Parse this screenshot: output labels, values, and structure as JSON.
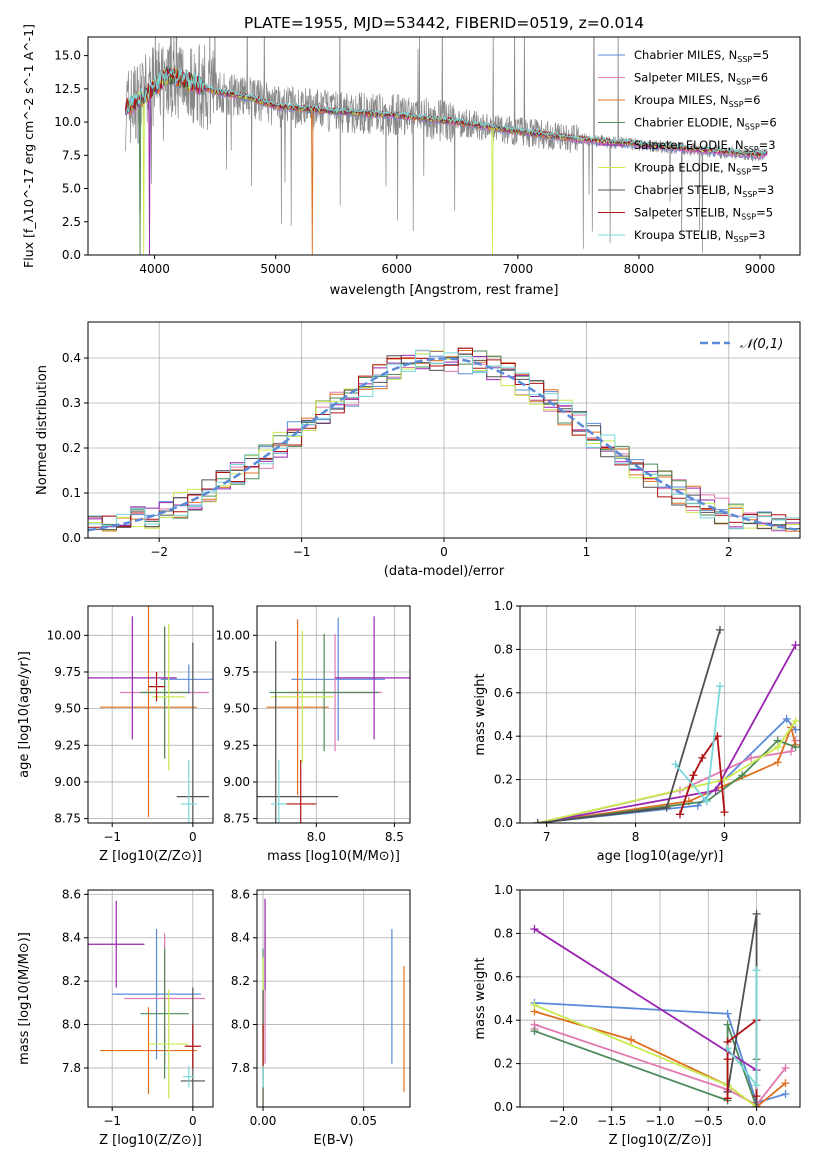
{
  "colors": {
    "c0": "#5b8bd8",
    "c1": "#e07ab0",
    "c2": "#e07020",
    "c3": "#4e8a5a",
    "c4": "#9a25b0",
    "c5": "#c8ec50",
    "c6": "#505050",
    "c7": "#b01010",
    "c8": "#7ad8d8",
    "gray": "#888888",
    "grid": "#b0b0b0"
  },
  "chart_data": [
    {
      "id": "spectrum",
      "type": "line",
      "title": "PLATE=1955, MJD=53442, FIBERID=0519, z=0.014",
      "xlabel": "wavelength [Angstrom, rest frame]",
      "ylabel": "Flux [f_λ10^-17 erg cm^-2 s^-1 A^-1]",
      "xlim": [
        3450,
        9330
      ],
      "ylim": [
        0,
        16.4
      ],
      "xticks": [
        4000,
        5000,
        6000,
        7000,
        8000,
        9000
      ],
      "yticks": [
        0.0,
        2.5,
        5.0,
        7.5,
        10.0,
        12.5,
        15.0
      ],
      "grid": false,
      "legend_position": "top-right",
      "legend": [
        "Chabrier MILES, N_SSP=5",
        "Salpeter MILES, N_SSP=6",
        "Kroupa MILES, N_SSP=6",
        "Chabrier ELODIE, N_SSP=6",
        "Salpeter ELODIE, N_SSP=3",
        "Kroupa ELODIE, N_SSP=5",
        "Chabrier STELIB, N_SSP=3",
        "Salpeter STELIB, N_SSP=5",
        "Kroupa STELIB, N_SSP=3"
      ],
      "continuum": [
        [
          3760,
          11.0
        ],
        [
          3900,
          11.8
        ],
        [
          4000,
          12.6
        ],
        [
          4100,
          13.5
        ],
        [
          4300,
          13.0
        ],
        [
          4500,
          12.3
        ],
        [
          4800,
          11.8
        ],
        [
          5000,
          11.2
        ],
        [
          5500,
          10.8
        ],
        [
          6000,
          10.5
        ],
        [
          6500,
          10.0
        ],
        [
          7000,
          9.3
        ],
        [
          7500,
          8.7
        ],
        [
          8000,
          8.3
        ],
        [
          8500,
          7.9
        ],
        [
          9000,
          7.5
        ],
        [
          9060,
          7.7
        ]
      ]
    },
    {
      "id": "residuals",
      "type": "line",
      "xlabel": "(data-model)/error",
      "ylabel": "Normed distribution",
      "xlim": [
        -2.5,
        2.5
      ],
      "ylim": [
        0,
        0.48
      ],
      "xticks": [
        -2,
        -1,
        0,
        1,
        2
      ],
      "yticks": [
        0.0,
        0.1,
        0.2,
        0.3,
        0.4
      ],
      "grid": true,
      "legend_position": "top-right",
      "legend": [
        "𝒩(0,1)"
      ],
      "reference_curve": "N(0,1) gaussian"
    },
    {
      "id": "z-vs-age",
      "type": "scatter",
      "xlabel": "Z [log10(Z/Z⊙)]",
      "ylabel": "age  [log10(age/yr)]",
      "xlim": [
        -1.3,
        0.25
      ],
      "ylim": [
        8.72,
        10.2
      ],
      "xticks": [
        -1,
        0
      ],
      "yticks": [
        8.75,
        9.0,
        9.25,
        9.5,
        9.75,
        10.0
      ],
      "grid": true,
      "points": [
        {
          "x": -0.05,
          "y": 9.7,
          "xerr": 0.35,
          "yerr": 0.1
        },
        {
          "x": -0.35,
          "y": 9.61,
          "xerr": 0.55,
          "yerr": 0.45
        },
        {
          "x": -0.55,
          "y": 9.51,
          "xerr": 0.6,
          "yerr": 0.75
        },
        {
          "x": -0.35,
          "y": 9.61,
          "xerr": 0.3,
          "yerr": 0.45
        },
        {
          "x": -0.75,
          "y": 9.71,
          "xerr": 0.55,
          "yerr": 0.42
        },
        {
          "x": -0.3,
          "y": 9.58,
          "xerr": 0.2,
          "yerr": 0.5
        },
        {
          "x": 0.0,
          "y": 8.9,
          "xerr": 0.2,
          "yerr": 1.05
        },
        {
          "x": -0.45,
          "y": 9.65,
          "xerr": 0.1,
          "yerr": 0.1
        },
        {
          "x": -0.05,
          "y": 8.85,
          "xerr": 0.1,
          "yerr": 0.3
        }
      ]
    },
    {
      "id": "mass-vs-age",
      "type": "scatter",
      "xlabel": "mass [log10(M/M⊙)]",
      "ylabel": "",
      "xlim": [
        7.62,
        8.6
      ],
      "ylim": [
        8.72,
        10.2
      ],
      "xticks": [
        8.0,
        8.5
      ],
      "yticks": [
        8.75,
        9.0,
        9.25,
        9.5,
        9.75,
        10.0
      ],
      "grid": true,
      "points": [
        {
          "x": 8.14,
          "y": 9.7,
          "xerr": 0.3,
          "yerr": 0.42
        },
        {
          "x": 8.12,
          "y": 9.61,
          "xerr": 0.3,
          "yerr": 0.4
        },
        {
          "x": 7.88,
          "y": 9.51,
          "xerr": 0.2,
          "yerr": 0.6
        },
        {
          "x": 8.05,
          "y": 9.61,
          "xerr": 0.35,
          "yerr": 0.4
        },
        {
          "x": 8.37,
          "y": 9.71,
          "xerr": 0.25,
          "yerr": 0.42
        },
        {
          "x": 7.91,
          "y": 9.58,
          "xerr": 0.2,
          "yerr": 0.45
        },
        {
          "x": 7.74,
          "y": 8.9,
          "xerr": 0.4,
          "yerr": 1.06
        },
        {
          "x": 7.9,
          "y": 8.85,
          "xerr": 0.1,
          "yerr": 0.3
        },
        {
          "x": 7.76,
          "y": 8.85,
          "xerr": 0.05,
          "yerr": 0.3
        }
      ]
    },
    {
      "id": "age-vs-weight",
      "type": "line",
      "xlabel": "age  [log10(age/yr)]",
      "ylabel": "mass weight",
      "xlim": [
        6.7,
        9.85
      ],
      "ylim": [
        0,
        1.0
      ],
      "xticks": [
        7,
        8,
        9
      ],
      "yticks": [
        0.0,
        0.2,
        0.4,
        0.6,
        0.8,
        1.0
      ],
      "grid": true,
      "series": [
        {
          "x": [
            6.9,
            8.7,
            9.7,
            9.8
          ],
          "y": [
            0.0,
            0.08,
            0.48,
            0.43
          ]
        },
        {
          "x": [
            6.9,
            8.5,
            9.3,
            9.75,
            9.8
          ],
          "y": [
            0.0,
            0.15,
            0.3,
            0.33,
            0.38
          ]
        },
        {
          "x": [
            6.9,
            8.6,
            9.6,
            9.75,
            9.8
          ],
          "y": [
            0.0,
            0.1,
            0.28,
            0.44,
            0.36
          ]
        },
        {
          "x": [
            6.9,
            8.8,
            9.2,
            9.6,
            9.8
          ],
          "y": [
            0.0,
            0.1,
            0.22,
            0.38,
            0.35
          ]
        },
        {
          "x": [
            6.9,
            8.9,
            9.8
          ],
          "y": [
            0.0,
            0.15,
            0.82
          ]
        },
        {
          "x": [
            6.9,
            9.0,
            9.6,
            9.8
          ],
          "y": [
            0.0,
            0.2,
            0.35,
            0.47
          ]
        },
        {
          "x": [
            6.9,
            8.35,
            8.95
          ],
          "y": [
            0.0,
            0.07,
            0.89
          ]
        },
        {
          "x": [
            8.5,
            8.65,
            8.75,
            8.92,
            9.0
          ],
          "y": [
            0.04,
            0.22,
            0.3,
            0.4,
            0.05
          ]
        },
        {
          "x": [
            8.45,
            8.8,
            8.95
          ],
          "y": [
            0.27,
            0.1,
            0.63
          ]
        }
      ]
    },
    {
      "id": "z-vs-mass",
      "type": "scatter",
      "xlabel": "Z [log10(Z/Z⊙)]",
      "ylabel": "mass [log10(M/M⊙)]",
      "xlim": [
        -1.3,
        0.25
      ],
      "ylim": [
        7.62,
        8.62
      ],
      "xticks": [
        -1,
        0
      ],
      "yticks": [
        7.8,
        8.0,
        8.2,
        8.4,
        8.6
      ],
      "grid": true,
      "points": [
        {
          "x": -0.45,
          "y": 8.14,
          "xerr": 0.55,
          "yerr": 0.3
        },
        {
          "x": -0.35,
          "y": 8.12,
          "xerr": 0.5,
          "yerr": 0.3
        },
        {
          "x": -0.55,
          "y": 7.88,
          "xerr": 0.6,
          "yerr": 0.2
        },
        {
          "x": -0.35,
          "y": 8.05,
          "xerr": 0.3,
          "yerr": 0.3
        },
        {
          "x": -0.95,
          "y": 8.37,
          "xerr": 0.35,
          "yerr": 0.2
        },
        {
          "x": -0.3,
          "y": 7.91,
          "xerr": 0.25,
          "yerr": 0.25
        },
        {
          "x": 0.0,
          "y": 7.74,
          "xerr": 0.15,
          "yerr": 0.43
        },
        {
          "x": 0.0,
          "y": 7.9,
          "xerr": 0.1,
          "yerr": 0.1
        },
        {
          "x": -0.05,
          "y": 7.76,
          "xerr": 0.07,
          "yerr": 0.05
        }
      ]
    },
    {
      "id": "ebv-vs-mass",
      "type": "scatter",
      "xlabel": "E(B-V)",
      "ylabel": "",
      "xlim": [
        -0.003,
        0.073
      ],
      "ylim": [
        7.62,
        8.62
      ],
      "xticks": [
        0.0,
        0.05
      ],
      "yticks": [
        7.8,
        8.0,
        8.2,
        8.4,
        8.6
      ],
      "grid": true,
      "points": [
        {
          "x": 0.064,
          "y": 8.13,
          "yerr": 0.31
        },
        {
          "x": 0.001,
          "y": 8.12,
          "yerr": 0.3
        },
        {
          "x": 0.07,
          "y": 7.98,
          "yerr": 0.29
        },
        {
          "x": 0.0,
          "y": 8.05,
          "yerr": 0.3
        },
        {
          "x": 0.001,
          "y": 8.37,
          "yerr": 0.21
        },
        {
          "x": 0.0,
          "y": 7.91,
          "yerr": 0.4
        },
        {
          "x": 0.0,
          "y": 7.74,
          "yerr": 0.42
        },
        {
          "x": 0.0,
          "y": 7.9,
          "yerr": 0.1
        },
        {
          "x": 0.0,
          "y": 7.76,
          "yerr": 0.05
        }
      ]
    },
    {
      "id": "z-vs-weight",
      "type": "line",
      "xlabel": "Z [log10(Z/Z⊙)]",
      "ylabel": "mass weight",
      "xlim": [
        -2.45,
        0.45
      ],
      "ylim": [
        0,
        1.0
      ],
      "xticks": [
        -2.0,
        -1.5,
        -1.0,
        -0.5,
        0.0
      ],
      "yticks": [
        0.0,
        0.2,
        0.4,
        0.6,
        0.8,
        1.0
      ],
      "grid": true,
      "series": [
        {
          "x": [
            -2.3,
            -0.3,
            0.0,
            0.3
          ],
          "y": [
            0.48,
            0.43,
            0.02,
            0.06
          ]
        },
        {
          "x": [
            -2.3,
            -2.3,
            -0.3,
            0.0,
            0.3
          ],
          "y": [
            0.36,
            0.38,
            0.08,
            0.01,
            0.18
          ]
        },
        {
          "x": [
            -2.3,
            -1.3,
            -0.3,
            0.0,
            0.3
          ],
          "y": [
            0.44,
            0.31,
            0.1,
            0.0,
            0.11
          ]
        },
        {
          "x": [
            -2.3,
            -0.3,
            -0.3,
            0.0,
            0.0
          ],
          "y": [
            0.35,
            0.03,
            0.38,
            0.0,
            0.22
          ]
        },
        {
          "x": [
            -2.3,
            0.0,
            0.0
          ],
          "y": [
            0.82,
            0.17,
            0.0
          ]
        },
        {
          "x": [
            -2.3,
            -0.3,
            0.0
          ],
          "y": [
            0.47,
            0.1,
            0.0
          ]
        },
        {
          "x": [
            -0.3,
            0.0,
            0.0
          ],
          "y": [
            0.07,
            0.89,
            0.0
          ]
        },
        {
          "x": [
            -0.3,
            -0.3,
            -0.3,
            0.0,
            0.0
          ],
          "y": [
            0.04,
            0.22,
            0.3,
            0.4,
            0.05
          ]
        },
        {
          "x": [
            -0.3,
            0.0,
            0.0
          ],
          "y": [
            0.27,
            0.1,
            0.63
          ]
        }
      ]
    }
  ]
}
